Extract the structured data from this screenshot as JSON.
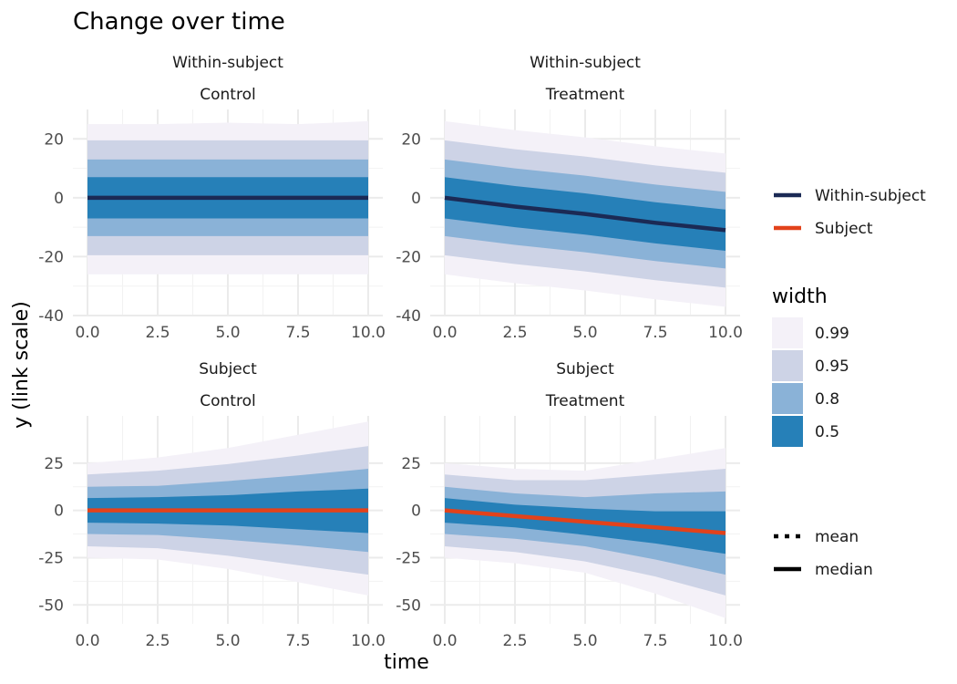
{
  "chart_data": {
    "type": "area",
    "title": "Change over time",
    "xlabel": "time",
    "ylabel": "y (link scale)",
    "x": [
      0,
      2.5,
      5,
      7.5,
      10
    ],
    "x_ticks": [
      "0.0",
      "2.5",
      "5.0",
      "7.5",
      "10.0"
    ],
    "interval_widths": [
      0.99,
      0.95,
      0.8,
      0.5
    ],
    "panels": [
      {
        "row_label": "Within-subject",
        "col_label": "Control",
        "xlim": [
          0,
          10
        ],
        "ylim": [
          -40,
          30
        ],
        "y_ticks": [
          20,
          0,
          -20,
          -40
        ],
        "y_tick_labels": [
          "20",
          "0",
          "-20",
          "-40"
        ],
        "center_color": "#1b2a55",
        "center": [
          0,
          0,
          0,
          0,
          0
        ],
        "bands": {
          "0.99": [
            [
              -26,
              25
            ],
            [
              -26,
              25
            ],
            [
              -26,
              25.5
            ],
            [
              -26,
              25
            ],
            [
              -26,
              26
            ]
          ],
          "0.95": [
            [
              -19.5,
              19.5
            ],
            [
              -19.5,
              19.5
            ],
            [
              -19.5,
              19.5
            ],
            [
              -19.5,
              19.5
            ],
            [
              -19.5,
              19.5
            ]
          ],
          "0.8": [
            [
              -13,
              13
            ],
            [
              -13,
              13
            ],
            [
              -13,
              13
            ],
            [
              -13,
              13
            ],
            [
              -13,
              13
            ]
          ],
          "0.5": [
            [
              -7,
              7
            ],
            [
              -7,
              7
            ],
            [
              -7,
              7
            ],
            [
              -7,
              7
            ],
            [
              -7,
              7
            ]
          ]
        }
      },
      {
        "row_label": "Within-subject",
        "col_label": "Treatment",
        "xlim": [
          0,
          10
        ],
        "ylim": [
          -40,
          30
        ],
        "y_ticks": [
          20,
          0,
          -20,
          -40
        ],
        "y_tick_labels": [
          "20",
          "0",
          "-20",
          "-40"
        ],
        "center_color": "#1b2a55",
        "center": [
          0,
          -3,
          -5.5,
          -8.5,
          -11
        ],
        "bands": {
          "0.99": [
            [
              -26,
              26
            ],
            [
              -29,
              23
            ],
            [
              -31.5,
              20.5
            ],
            [
              -34.5,
              17.5
            ],
            [
              -37,
              15
            ]
          ],
          "0.95": [
            [
              -19.5,
              19.5
            ],
            [
              -22.5,
              16.5
            ],
            [
              -25,
              14
            ],
            [
              -28,
              11
            ],
            [
              -30.5,
              8.5
            ]
          ],
          "0.8": [
            [
              -13,
              13
            ],
            [
              -16,
              10
            ],
            [
              -18.5,
              7.5
            ],
            [
              -21.5,
              4.5
            ],
            [
              -24,
              2
            ]
          ],
          "0.5": [
            [
              -7,
              7
            ],
            [
              -10,
              4
            ],
            [
              -12.5,
              1.5
            ],
            [
              -15.5,
              -1.5
            ],
            [
              -18,
              -4
            ]
          ]
        }
      },
      {
        "row_label": "Subject",
        "col_label": "Control",
        "xlim": [
          0,
          10
        ],
        "ylim": [
          -60,
          50
        ],
        "y_ticks": [
          25,
          0,
          -25,
          -50
        ],
        "y_tick_labels": [
          "25",
          "0",
          "-25",
          "-50"
        ],
        "center_color": "#e2421b",
        "center": [
          0,
          0,
          0,
          0,
          0
        ],
        "bands": {
          "0.99": [
            [
              -25,
              25
            ],
            [
              -26,
              28
            ],
            [
              -31,
              33
            ],
            [
              -38,
              40
            ],
            [
              -45,
              47
            ]
          ],
          "0.95": [
            [
              -19,
              19
            ],
            [
              -20,
              21
            ],
            [
              -24,
              24.5
            ],
            [
              -29,
              29
            ],
            [
              -34,
              34
            ]
          ],
          "0.8": [
            [
              -12.5,
              12.5
            ],
            [
              -13,
              13
            ],
            [
              -15.5,
              15.5
            ],
            [
              -18.5,
              18.5
            ],
            [
              -22,
              22
            ]
          ],
          "0.5": [
            [
              -6.5,
              6.5
            ],
            [
              -7,
              7
            ],
            [
              -8,
              8
            ],
            [
              -10,
              10
            ],
            [
              -12,
              11.5
            ]
          ]
        }
      },
      {
        "row_label": "Subject",
        "col_label": "Treatment",
        "xlim": [
          0,
          10
        ],
        "ylim": [
          -60,
          50
        ],
        "y_ticks": [
          25,
          0,
          -25,
          -50
        ],
        "y_tick_labels": [
          "25",
          "0",
          "-25",
          "-50"
        ],
        "center_color": "#e2421b",
        "center": [
          0,
          -3,
          -6,
          -9,
          -12
        ],
        "bands": {
          "0.99": [
            [
              -25,
              25
            ],
            [
              -28,
              22
            ],
            [
              -33,
              21
            ],
            [
              -44,
              27
            ],
            [
              -57,
              33
            ]
          ],
          "0.95": [
            [
              -19,
              19
            ],
            [
              -22,
              16
            ],
            [
              -27,
              16
            ],
            [
              -35,
              19
            ],
            [
              -45,
              22
            ]
          ],
          "0.8": [
            [
              -12.5,
              12.5
            ],
            [
              -15,
              9
            ],
            [
              -19,
              7
            ],
            [
              -26,
              9
            ],
            [
              -34,
              10
            ]
          ],
          "0.5": [
            [
              -6.5,
              6.5
            ],
            [
              -9,
              3
            ],
            [
              -13,
              1
            ],
            [
              -17.5,
              -0.5
            ],
            [
              -23,
              -0.5
            ]
          ]
        }
      }
    ],
    "legend": {
      "series": [
        {
          "name": "Within-subject",
          "color": "#1b2a55"
        },
        {
          "name": "Subject",
          "color": "#e2421b"
        }
      ],
      "width_title": "width",
      "widths": [
        {
          "label": "0.99",
          "color": "#f4f1f8"
        },
        {
          "label": "0.95",
          "color": "#cdd3e6"
        },
        {
          "label": "0.8",
          "color": "#8ab2d7"
        },
        {
          "label": "0.5",
          "color": "#2680b8"
        }
      ],
      "linetypes": [
        {
          "label": "mean",
          "style": "dotted"
        },
        {
          "label": "median",
          "style": "solid"
        }
      ]
    },
    "grid": true,
    "legend_position": "right"
  }
}
